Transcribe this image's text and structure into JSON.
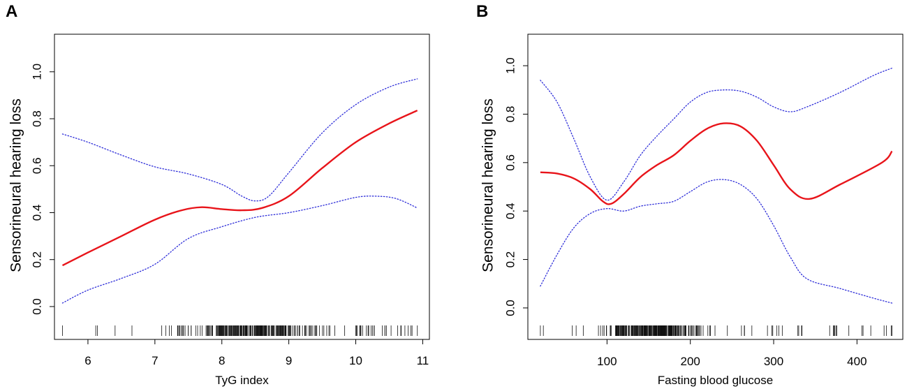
{
  "chart_data": [
    {
      "type": "line",
      "panel_label": "A",
      "xlabel": "TyG index",
      "ylabel": "Sensorineural hearing loss",
      "xlim": [
        5.5,
        11.1
      ],
      "ylim": [
        -0.14,
        1.16
      ],
      "xticks": [
        6,
        7,
        8,
        9,
        10,
        11
      ],
      "yticks": [
        0.0,
        0.2,
        0.4,
        0.6,
        0.8,
        1.0
      ],
      "xtick_labels": [
        "6",
        "7",
        "8",
        "9",
        "10",
        "11"
      ],
      "ytick_labels": [
        "0.0",
        "0.2",
        "0.4",
        "0.6",
        "0.8",
        "1.0"
      ],
      "series": [
        {
          "name": "estimate",
          "style": "solid",
          "color": "#e8141a",
          "x": [
            5.62,
            6.0,
            6.5,
            7.0,
            7.4,
            7.7,
            8.0,
            8.3,
            8.6,
            9.0,
            9.5,
            10.0,
            10.5,
            10.92
          ],
          "y": [
            0.175,
            0.23,
            0.3,
            0.37,
            0.41,
            0.423,
            0.415,
            0.41,
            0.42,
            0.47,
            0.59,
            0.7,
            0.78,
            0.835
          ]
        },
        {
          "name": "upper 95% CI",
          "style": "dotted",
          "color": "#2b2bd8",
          "x": [
            5.62,
            6.0,
            6.5,
            7.0,
            7.5,
            8.0,
            8.3,
            8.5,
            8.7,
            9.0,
            9.5,
            10.0,
            10.5,
            10.92
          ],
          "y": [
            0.735,
            0.7,
            0.645,
            0.595,
            0.565,
            0.52,
            0.47,
            0.45,
            0.47,
            0.57,
            0.74,
            0.86,
            0.935,
            0.97
          ]
        },
        {
          "name": "lower 95% CI",
          "style": "dotted",
          "color": "#2b2bd8",
          "x": [
            5.62,
            6.0,
            6.5,
            7.0,
            7.5,
            8.0,
            8.5,
            9.0,
            9.5,
            10.0,
            10.3,
            10.6,
            10.92
          ],
          "y": [
            0.015,
            0.07,
            0.12,
            0.18,
            0.29,
            0.34,
            0.38,
            0.4,
            0.43,
            0.465,
            0.47,
            0.46,
            0.42
          ]
        }
      ],
      "rug": {
        "min": 5.62,
        "max": 10.92,
        "dense_from": 6.85,
        "dense_to": 10.0
      }
    },
    {
      "type": "line",
      "panel_label": "B",
      "xlabel": "Fasting blood glucose",
      "ylabel": "Sensorineural hearing loss",
      "xlim": [
        5,
        455
      ],
      "ylim": [
        -0.13,
        1.13
      ],
      "xticks": [
        100,
        200,
        300,
        400
      ],
      "yticks": [
        0.0,
        0.2,
        0.4,
        0.6,
        0.8,
        1.0
      ],
      "xtick_labels": [
        "100",
        "200",
        "300",
        "400"
      ],
      "ytick_labels": [
        "0.0",
        "0.2",
        "0.4",
        "0.6",
        "0.8",
        "1.0"
      ],
      "series": [
        {
          "name": "estimate",
          "style": "solid",
          "color": "#e8141a",
          "x": [
            20,
            40,
            60,
            80,
            95,
            105,
            120,
            140,
            160,
            180,
            200,
            220,
            240,
            260,
            280,
            300,
            320,
            343,
            380,
            430,
            442
          ],
          "y": [
            0.56,
            0.555,
            0.535,
            0.49,
            0.44,
            0.43,
            0.47,
            0.54,
            0.59,
            0.63,
            0.69,
            0.74,
            0.762,
            0.75,
            0.69,
            0.59,
            0.49,
            0.45,
            0.51,
            0.6,
            0.647
          ]
        },
        {
          "name": "upper 95% CI",
          "style": "dotted",
          "color": "#2b2bd8",
          "x": [
            20,
            40,
            60,
            80,
            100,
            120,
            140,
            160,
            180,
            200,
            220,
            240,
            260,
            280,
            300,
            320,
            340,
            380,
            420,
            442
          ],
          "y": [
            0.94,
            0.85,
            0.7,
            0.54,
            0.445,
            0.52,
            0.63,
            0.71,
            0.78,
            0.85,
            0.89,
            0.9,
            0.895,
            0.87,
            0.83,
            0.81,
            0.83,
            0.89,
            0.96,
            0.99
          ]
        },
        {
          "name": "lower 95% CI",
          "style": "dotted",
          "color": "#2b2bd8",
          "x": [
            20,
            40,
            60,
            80,
            100,
            120,
            140,
            160,
            180,
            200,
            220,
            240,
            260,
            280,
            300,
            320,
            340,
            380,
            420,
            442
          ],
          "y": [
            0.09,
            0.22,
            0.33,
            0.39,
            0.41,
            0.4,
            0.42,
            0.43,
            0.44,
            0.48,
            0.52,
            0.53,
            0.51,
            0.45,
            0.34,
            0.21,
            0.12,
            0.08,
            0.04,
            0.02
          ]
        }
      ],
      "rug": {
        "min": 20,
        "max": 442,
        "dense_from": 75,
        "dense_to": 240
      }
    }
  ]
}
